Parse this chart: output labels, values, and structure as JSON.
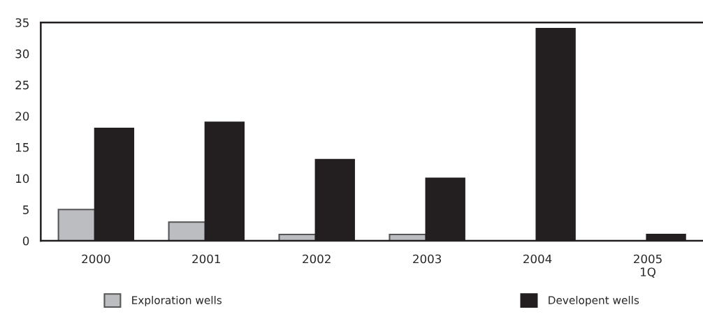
{
  "chart_data": {
    "type": "bar",
    "categories": [
      "2000",
      "2001",
      "2002",
      "2003",
      "2004",
      "2005\n1Q"
    ],
    "series": [
      {
        "name": "Exploration wells",
        "color": "#bcbdc0",
        "values": [
          5,
          3,
          1,
          1,
          0,
          0
        ]
      },
      {
        "name": "Developent wells",
        "color": "#231f20",
        "values": [
          18,
          19,
          13,
          10,
          34,
          1
        ]
      }
    ],
    "ylim": [
      0,
      35
    ],
    "yticks": [
      0,
      5,
      10,
      15,
      20,
      25,
      30,
      35
    ],
    "grid": false,
    "legend": "bottom"
  }
}
